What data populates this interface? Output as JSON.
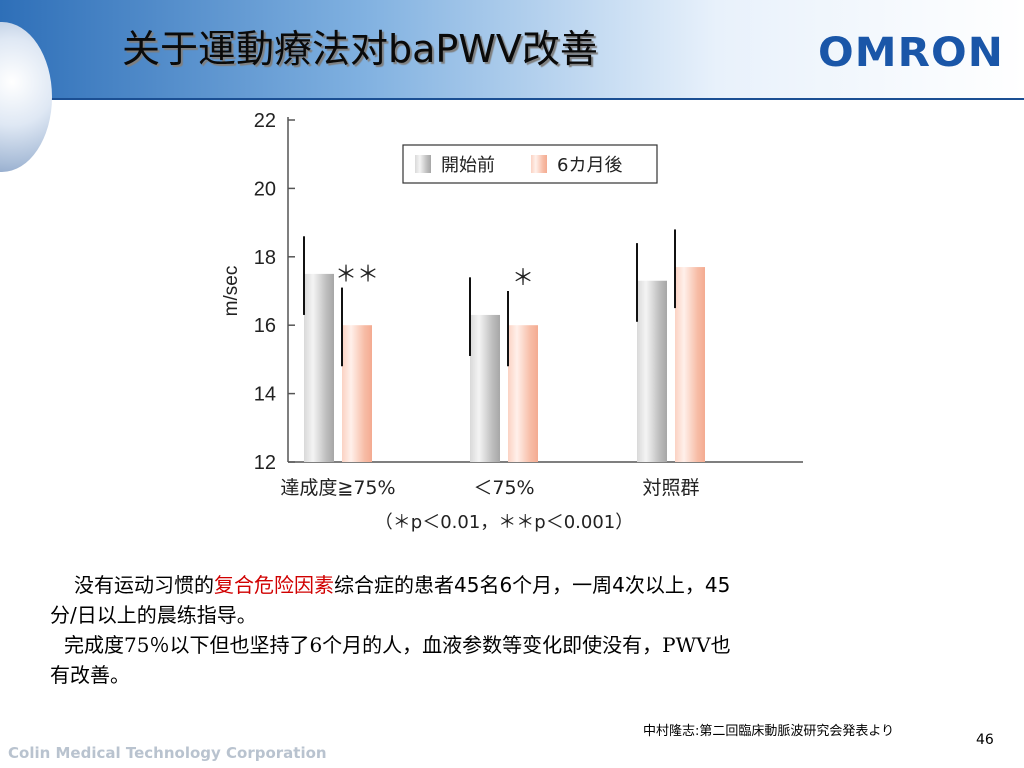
{
  "slide": {
    "title": "关于運動療法对baPWV改善",
    "logo": "OMRON",
    "source": "中村隆志:第二回臨床動脈波研究会発表より",
    "page_number": "46",
    "footer": "Colin Medical Technology Corporation",
    "text": {
      "p1_part1": "没有运动习惯的",
      "p1_red": "复合危险因素",
      "p1_part2": "综合症的患者45名6个月，一周4次以上，45",
      "p1_line2": "分/日以上的晨练指导。",
      "p2_line1": "完成度75％以下但也坚持了6个月的人，血液参数等变化即使没有，PWV也",
      "p2_line2": "有改善。"
    },
    "colors": {
      "before": "#b8b8b8",
      "after": "#f7b9a3",
      "title_bar": "#2e6fb8"
    }
  },
  "chart_data": {
    "type": "bar",
    "ylabel": "m/sec",
    "ylim": [
      12,
      22
    ],
    "yticks": [
      "12",
      "14",
      "16",
      "18",
      "20",
      "22"
    ],
    "categories": [
      "達成度≧75%",
      "＜75%",
      "対照群"
    ],
    "series": [
      {
        "name": "開始前",
        "values": [
          17.5,
          16.3,
          17.3
        ],
        "err_low": [
          16.3,
          15.1,
          16.1
        ],
        "err_high": [
          18.6,
          17.4,
          18.4
        ]
      },
      {
        "name": "6カ月後",
        "values": [
          16.0,
          16.0,
          17.7
        ],
        "err_low": [
          14.8,
          14.8,
          16.5
        ],
        "err_high": [
          17.1,
          17.0,
          18.8
        ]
      }
    ],
    "significance": [
      "＊＊",
      "＊",
      ""
    ],
    "note": "（＊p＜0.01，＊＊p＜0.001）",
    "legend_position": "top-right"
  }
}
